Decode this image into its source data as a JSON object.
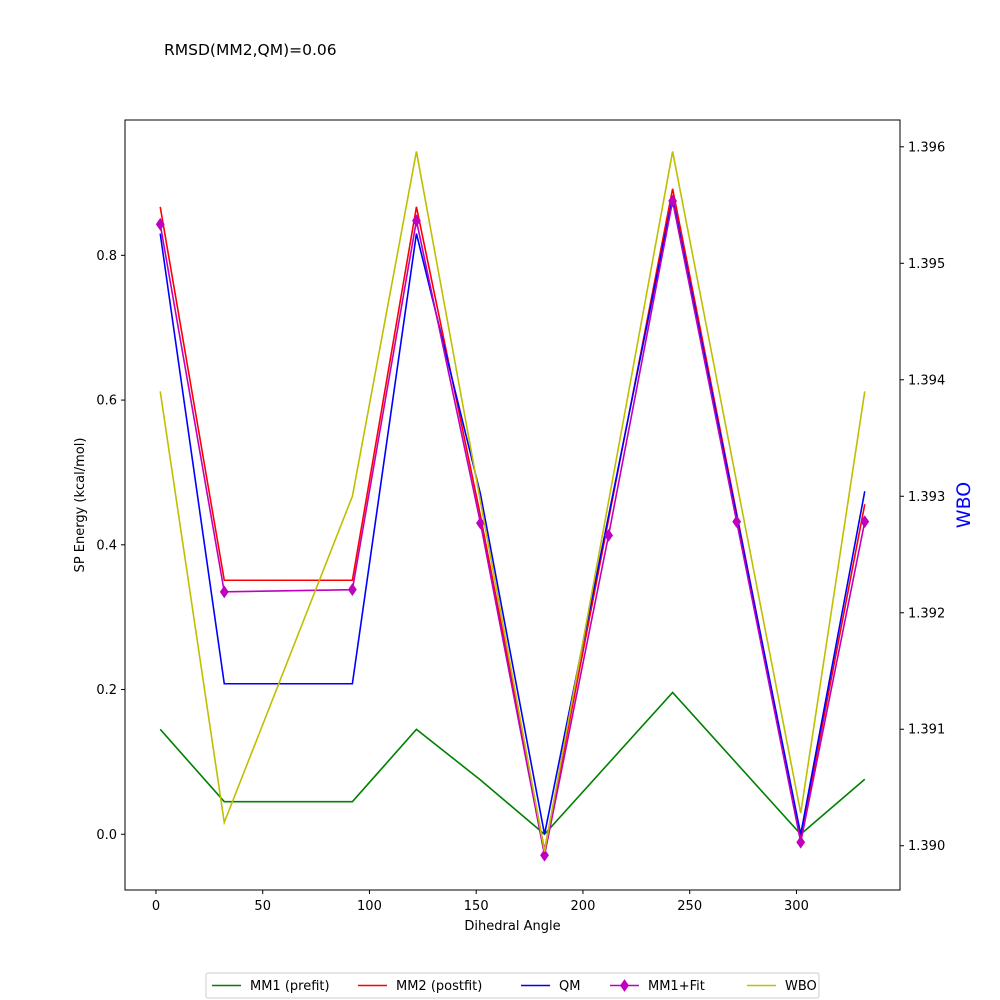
{
  "chart_data": {
    "type": "line",
    "title": "RMSD(MM2,QM)=0.06",
    "xlabel": "Dihedral Angle",
    "ylabel": "SP Energy (kcal/mol)",
    "y2label": "WBO",
    "y2label_color": "#0000ff",
    "xlim": [
      -14.5,
      348.5
    ],
    "ylim": [
      -0.077,
      0.987
    ],
    "y2lim": [
      1.38962,
      1.39623
    ],
    "xticks": [
      0,
      50,
      100,
      150,
      200,
      250,
      300
    ],
    "yticks": [
      0.0,
      0.2,
      0.4,
      0.6,
      0.8
    ],
    "ytick_labels": [
      "0.0",
      "0.2",
      "0.4",
      "0.6",
      "0.8"
    ],
    "y2ticks": [
      1.39,
      1.391,
      1.392,
      1.393,
      1.394,
      1.395,
      1.396
    ],
    "y2tick_labels": [
      "1.390",
      "1.391",
      "1.392",
      "1.393",
      "1.394",
      "1.395",
      "1.396"
    ],
    "grid": false,
    "legend_position": "bottom-center",
    "series": [
      {
        "name": "MM1 (prefit)",
        "color": "#008000",
        "marker": "none",
        "axis": "left",
        "x": [
          2,
          32,
          92,
          122,
          152,
          182,
          242,
          302,
          332
        ],
        "y": [
          0.145,
          0.045,
          0.045,
          0.145,
          0.075,
          0.0,
          0.196,
          0.0,
          0.076
        ]
      },
      {
        "name": "MM2 (postfit)",
        "color": "#ff0000",
        "marker": "none",
        "axis": "left",
        "x": [
          2,
          32,
          92,
          122,
          152,
          182,
          242,
          302,
          332
        ],
        "y": [
          0.867,
          0.351,
          0.351,
          0.867,
          0.44,
          -0.022,
          0.892,
          -0.005,
          0.456
        ]
      },
      {
        "name": "QM",
        "color": "#0000ff",
        "marker": "none",
        "axis": "left",
        "x": [
          2,
          32,
          92,
          122,
          152,
          182,
          242,
          302,
          332
        ],
        "y": [
          0.83,
          0.208,
          0.208,
          0.83,
          0.47,
          0.0,
          0.88,
          0.0,
          0.474
        ]
      },
      {
        "name": "MM1+Fit",
        "color": "#bf00bf",
        "marker": "diamond",
        "axis": "left",
        "x": [
          2,
          32,
          92,
          122,
          152,
          182,
          212,
          242,
          272,
          302,
          332
        ],
        "y": [
          0.843,
          0.335,
          0.338,
          0.848,
          0.43,
          -0.029,
          0.413,
          0.875,
          0.432,
          -0.011,
          0.432
        ]
      },
      {
        "name": "WBO",
        "color": "#bfbf00",
        "marker": "none",
        "axis": "right",
        "x": [
          2,
          32,
          92,
          122,
          182,
          242,
          302,
          332
        ],
        "y": [
          1.3939,
          1.3902,
          1.393,
          1.39596,
          1.38995,
          1.39596,
          1.39028,
          1.3939
        ]
      }
    ]
  }
}
